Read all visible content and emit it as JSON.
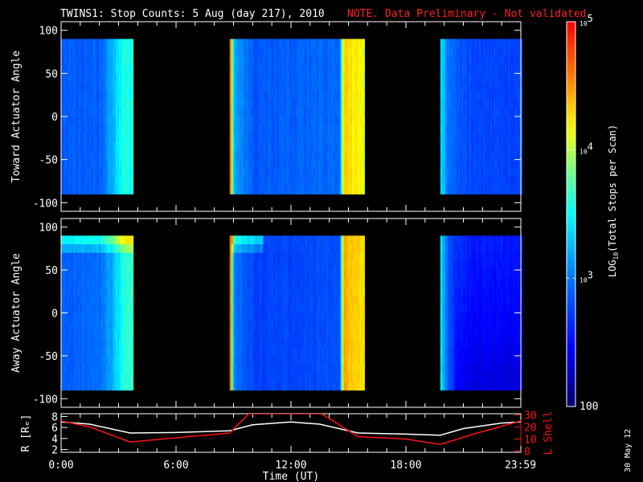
{
  "title": {
    "main": "TWINS1: Stop Counts:  5 Aug (day 217), 2010",
    "note": "NOTE. Data Preliminary - Not validated",
    "note_color": "#ff2020"
  },
  "footer_date": "30 May 12",
  "chart_data": [
    {
      "type": "heatmap",
      "name": "toward",
      "ylabel": "Toward Actuator Angle",
      "ylim": [
        -110,
        110
      ],
      "yticks": [
        "100",
        "50",
        "0",
        "-50",
        "-100"
      ],
      "ytick_values": [
        100,
        50,
        0,
        -50,
        -100
      ],
      "angle_range": [
        -90,
        90
      ],
      "xlim_hours": [
        0,
        24
      ],
      "segments": [
        {
          "start": 0.0,
          "end": 3.7,
          "profile": [
            [
              0,
              2.85
            ],
            [
              2.0,
              2.9
            ],
            [
              2.6,
              3.2
            ],
            [
              3.2,
              3.6
            ],
            [
              3.7,
              3.6
            ]
          ]
        },
        {
          "start": 8.8,
          "end": 15.8,
          "profile": [
            [
              8.8,
              4.6
            ],
            [
              9.0,
              3.2
            ],
            [
              10,
              2.85
            ],
            [
              14.5,
              2.95
            ],
            [
              14.7,
              4.3
            ],
            [
              15.8,
              4.1
            ]
          ]
        },
        {
          "start": 19.8,
          "end": 24.0,
          "profile": [
            [
              19.8,
              3.4
            ],
            [
              20.2,
              2.95
            ],
            [
              21.0,
              2.8
            ],
            [
              24.0,
              2.75
            ]
          ]
        }
      ]
    },
    {
      "type": "heatmap",
      "name": "away",
      "ylabel": "Away Actuator Angle",
      "ylim": [
        -110,
        110
      ],
      "yticks": [
        "100",
        "50",
        "0",
        "-50",
        "-100"
      ],
      "ytick_values": [
        100,
        50,
        0,
        -50,
        -100
      ],
      "angle_range": [
        -90,
        90
      ],
      "xlim_hours": [
        0,
        24
      ],
      "segments": [
        {
          "start": 0.0,
          "end": 3.7,
          "profile": [
            [
              0,
              2.9
            ],
            [
              2.0,
              2.95
            ],
            [
              2.6,
              3.2
            ],
            [
              3.2,
              3.6
            ],
            [
              3.7,
              3.6
            ]
          ]
        },
        {
          "start": 8.8,
          "end": 15.8,
          "profile": [
            [
              8.8,
              4.6
            ],
            [
              9.0,
              3.0
            ],
            [
              10,
              2.75
            ],
            [
              14.5,
              2.8
            ],
            [
              14.7,
              4.4
            ],
            [
              15.8,
              4.2
            ]
          ]
        },
        {
          "start": 19.8,
          "end": 24.0,
          "profile": [
            [
              19.8,
              3.4
            ],
            [
              20.2,
              2.8
            ],
            [
              21.0,
              2.6
            ],
            [
              24.0,
              2.55
            ]
          ]
        }
      ]
    },
    {
      "type": "line",
      "name": "orbit",
      "xlabel": "Time (UT)",
      "xticks": [
        "0:00",
        "6:00",
        "12:00",
        "18:00",
        "23:59"
      ],
      "xtick_values": [
        0,
        6,
        12,
        18,
        23.98
      ],
      "ylabel_left": "R [Rₑ]",
      "ylabel_right": "L Shell",
      "yticks_left": [
        "8",
        "6",
        "4",
        "2"
      ],
      "ytick_left_values": [
        8,
        6,
        4,
        2
      ],
      "ylim_left": [
        1.5,
        8.5
      ],
      "yticks_right": [
        "30",
        "20",
        "10",
        "0"
      ],
      "ytick_right_values": [
        30,
        20,
        10,
        0
      ],
      "ylim_right": [
        -1,
        31
      ],
      "series": [
        {
          "name": "R",
          "color": "#ffffff",
          "axis": "left",
          "x": [
            0,
            1.5,
            3.6,
            6,
            8.8,
            10,
            12,
            13.5,
            15.5,
            18,
            19.8,
            21,
            23,
            24
          ],
          "y": [
            7,
            6.6,
            5,
            5.1,
            5.4,
            6.5,
            7,
            6.6,
            5,
            4.8,
            4.6,
            5.8,
            6.8,
            7
          ]
        },
        {
          "name": "L Shell",
          "color": "#ff1010",
          "axis": "right",
          "x": [
            0,
            1.5,
            3.6,
            6,
            8.8,
            9.8,
            13.6,
            15.5,
            18,
            19.8,
            21.5,
            24
          ],
          "y": [
            25,
            20,
            7.5,
            11,
            15,
            31,
            31,
            12,
            10,
            5.5,
            14,
            25
          ]
        }
      ]
    },
    {
      "type": "colorbar",
      "label": "LOG10(Total Stops per Scan)",
      "label_prefix": "LOG",
      "label_sub": "10",
      "label_suffix": "(Total Stops per Scan)",
      "ticks": [
        {
          "base": "10",
          "exp": "5"
        },
        {
          "base": "10",
          "exp": "4"
        },
        {
          "base": "10",
          "exp": "3"
        },
        {
          "base": "100",
          "exp": ""
        }
      ],
      "tick_values_log": [
        5,
        4,
        3,
        2
      ],
      "range_log": [
        2,
        5
      ]
    }
  ]
}
